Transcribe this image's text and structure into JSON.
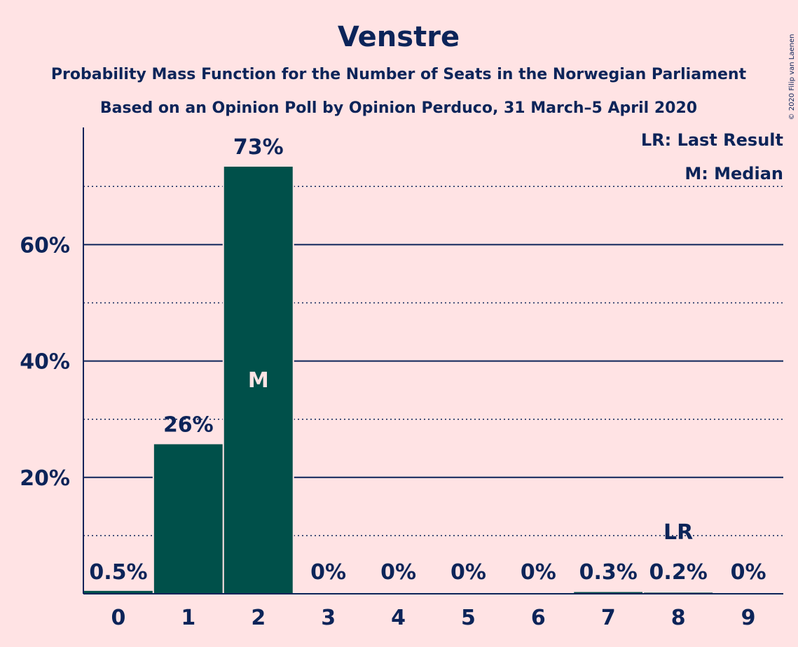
{
  "colors": {
    "background": "#FFE3E4",
    "bar": "#00504A",
    "text": "#0C2459"
  },
  "chart_data": {
    "type": "bar",
    "title": "Venstre",
    "subtitle_1": "Probability Mass Function for the Number of Seats in the Norwegian Parliament",
    "subtitle_2": "Based on an Opinion Poll by Opinion Perduco, 31 March–5 April 2020",
    "copyright": "© 2020 Filip van Laenen",
    "categories": [
      "0",
      "1",
      "2",
      "3",
      "4",
      "5",
      "6",
      "7",
      "8",
      "9"
    ],
    "values": [
      0.5,
      25.7,
      73.4,
      0,
      0,
      0,
      0,
      0.3,
      0.2,
      0
    ],
    "value_labels": [
      "0.5%",
      "26%",
      "73%",
      "0%",
      "0%",
      "0%",
      "0%",
      "0.3%",
      "0.2%",
      "0%"
    ],
    "y_ticks": [
      {
        "value": 20,
        "label": "20%"
      },
      {
        "value": 40,
        "label": "40%"
      },
      {
        "value": 60,
        "label": "60%"
      }
    ],
    "ylim": [
      0,
      80
    ],
    "gridlines_major": [
      20,
      40,
      60
    ],
    "gridlines_minor": [
      10,
      30,
      50,
      70
    ],
    "median": {
      "index": 2,
      "marker": "M"
    },
    "last_result": {
      "index": 8,
      "marker": "LR"
    },
    "legend": {
      "position": "top-right",
      "items": [
        "LR: Last Result",
        "M: Median"
      ]
    }
  }
}
